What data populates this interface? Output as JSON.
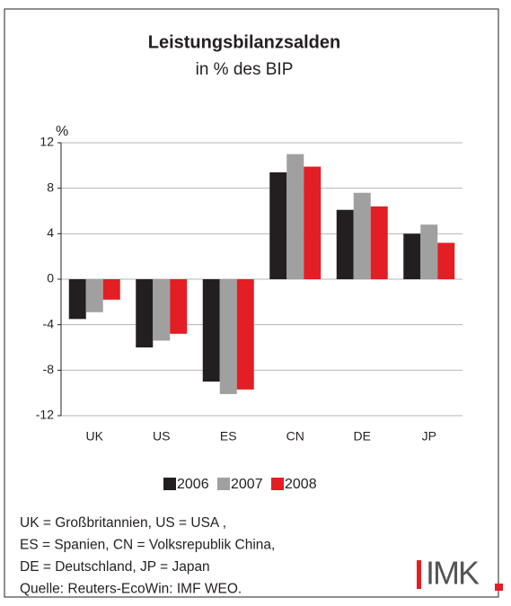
{
  "chart_data": {
    "type": "bar",
    "title": "Leistungsbilanzsalden",
    "subtitle": "in % des BIP",
    "y_label": "%",
    "categories": [
      "UK",
      "US",
      "ES",
      "CN",
      "DE",
      "JP"
    ],
    "series": [
      {
        "name": "2006",
        "color": "#231f20",
        "values": [
          -3.5,
          -6.0,
          -9.0,
          9.4,
          6.1,
          4.0
        ]
      },
      {
        "name": "2007",
        "color": "#a0a0a0",
        "values": [
          -2.9,
          -5.4,
          -10.1,
          11.0,
          7.6,
          4.8
        ]
      },
      {
        "name": "2008",
        "color": "#e31e24",
        "values": [
          -1.8,
          -4.8,
          -9.7,
          9.9,
          6.4,
          3.2
        ]
      }
    ],
    "ylim": [
      -12,
      12
    ],
    "yticks": [
      -12,
      -8,
      -4,
      0,
      4,
      8,
      12
    ],
    "grid": true,
    "legend": "bottom",
    "notes": [
      "UK = Großbritannien, US = USA ,",
      "ES = Spanien, CN = Volksrepublik China,",
      "DE = Deutschland, JP = Japan",
      "Quelle: Reuters-EcoWin: IMF WEO."
    ],
    "logo": "IMK"
  }
}
